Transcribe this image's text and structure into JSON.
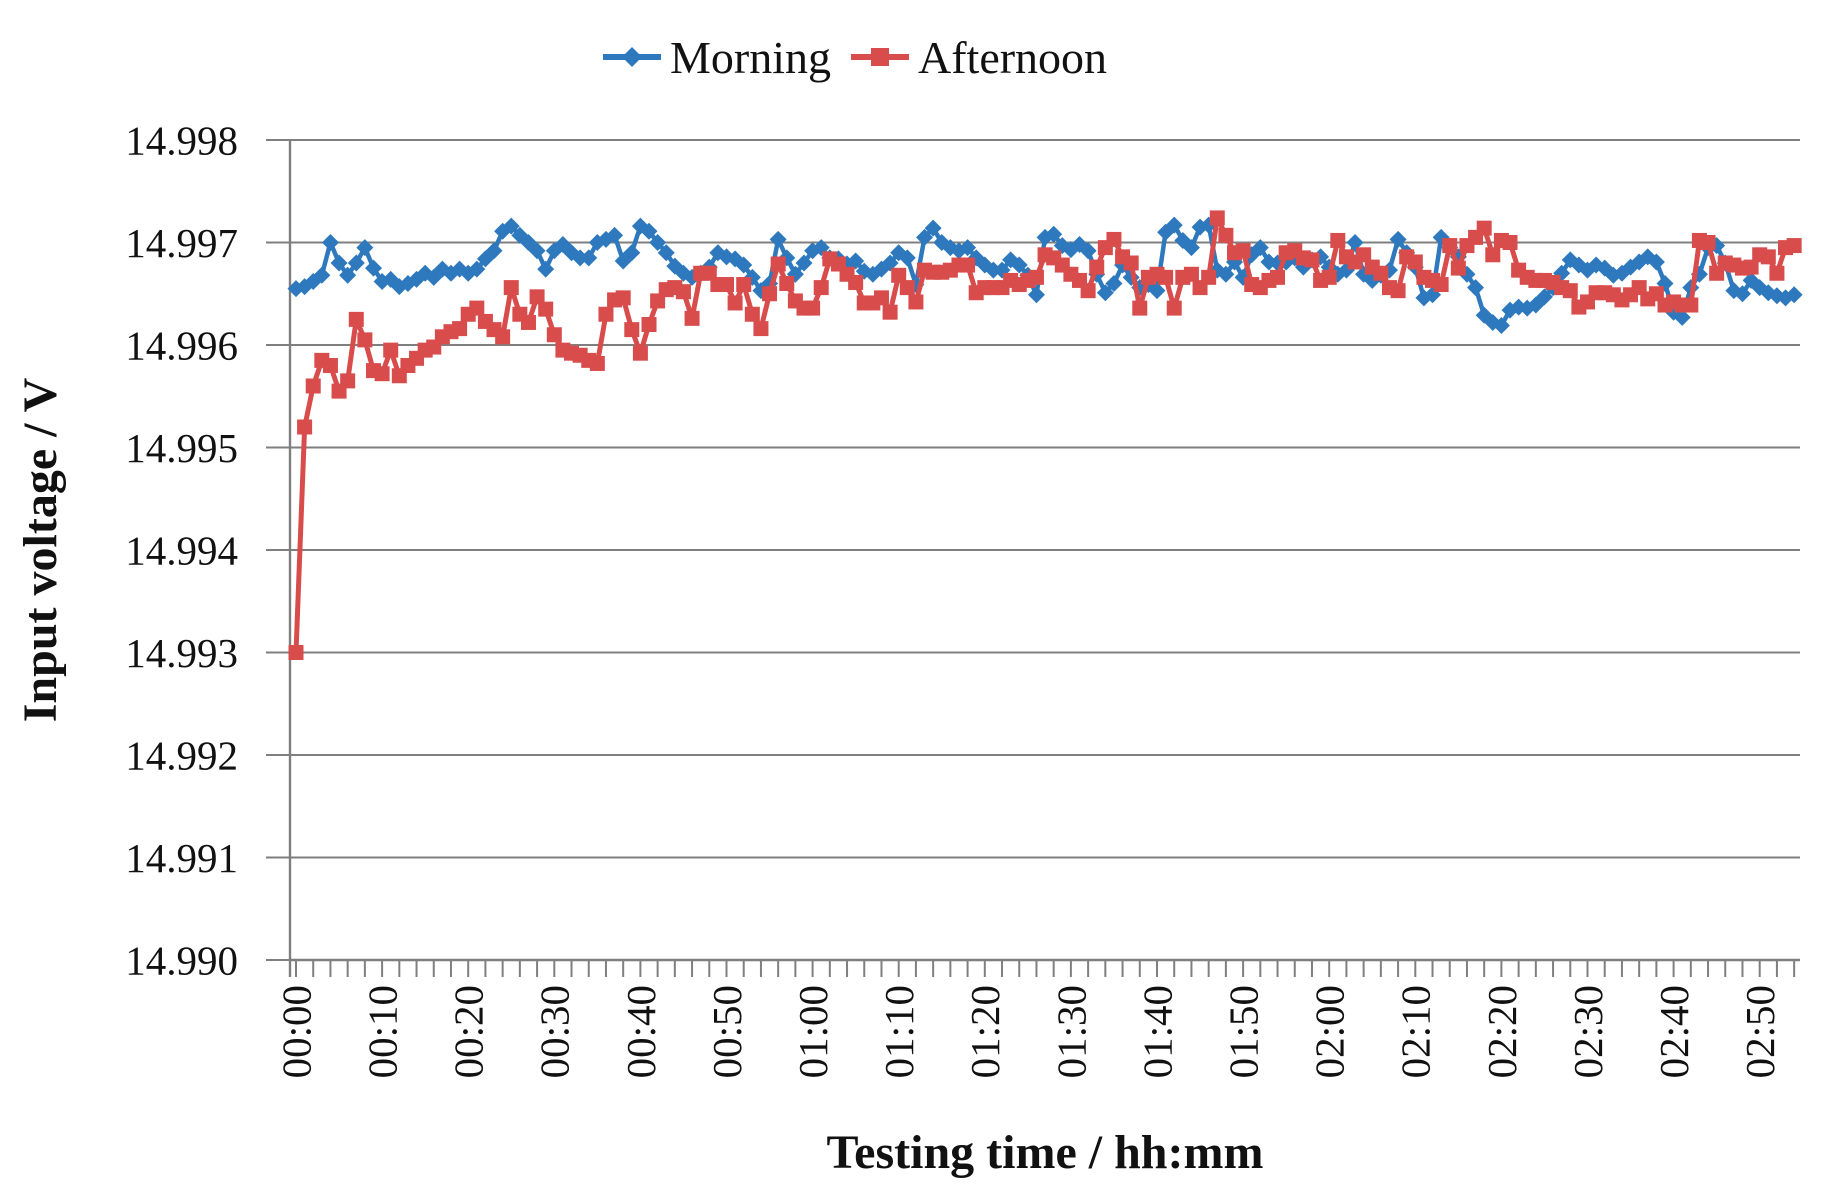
{
  "chart_data": {
    "type": "line",
    "title": "",
    "xlabel": "Testing time / hh:mm",
    "ylabel": "Input voltage / V",
    "legend_position": "top-center",
    "grid": "horizontal",
    "ylim": [
      14.99,
      14.998
    ],
    "y_ticks": [
      14.99,
      14.991,
      14.992,
      14.993,
      14.994,
      14.995,
      14.996,
      14.997,
      14.998
    ],
    "y_tick_labels": [
      "14.990",
      "14.991",
      "14.992",
      "14.993",
      "14.994",
      "14.995",
      "14.996",
      "14.997",
      "14.998"
    ],
    "x_unit": "minutes",
    "x_sample_interval_minutes": 1,
    "x_minor_tick_minutes": 2,
    "x_major_tick_minutes": 10,
    "x_tick_labels": [
      "00:00",
      "00:10",
      "00:20",
      "00:30",
      "00:40",
      "00:50",
      "01:00",
      "01:10",
      "01:20",
      "01:30",
      "01:40",
      "01:50",
      "02:00",
      "02:10",
      "02:20",
      "02:30",
      "02:40",
      "02:50"
    ],
    "colors": {
      "morning": "#2E79BD",
      "afternoon": "#D94C4C",
      "grid": "#7F7F7F",
      "text": "#111111"
    },
    "series": [
      {
        "name": "Morning",
        "color": "#2E79BD",
        "marker": "diamond",
        "values": [
          14.99655,
          14.99657,
          14.99662,
          14.99668,
          14.997,
          14.9968,
          14.99668,
          14.9968,
          14.99695,
          14.99675,
          14.99662,
          14.99664,
          14.99657,
          14.9966,
          14.99664,
          14.9967,
          14.99666,
          14.99674,
          14.9967,
          14.99674,
          14.9967,
          14.99674,
          14.99684,
          14.99692,
          14.99711,
          14.99716,
          14.99707,
          14.997,
          14.99692,
          14.99674,
          14.99692,
          14.99698,
          14.9969,
          14.99685,
          14.99685,
          14.997,
          14.99703,
          14.99707,
          14.99682,
          14.9969,
          14.99716,
          14.99711,
          14.997,
          14.9969,
          14.99677,
          14.9967,
          14.99666,
          14.9967,
          14.99676,
          14.9969,
          14.99686,
          14.99684,
          14.99678,
          14.99666,
          14.99653,
          14.9966,
          14.99703,
          14.99685,
          14.99669,
          14.9968,
          14.99692,
          14.99695,
          14.99685,
          14.99684,
          14.99679,
          14.99682,
          14.99672,
          14.99669,
          14.99674,
          14.9968,
          14.9969,
          14.99685,
          14.99659,
          14.99705,
          14.99714,
          14.997,
          14.99695,
          14.99692,
          14.99695,
          14.99685,
          14.99678,
          14.99673,
          14.99673,
          14.99683,
          14.99678,
          14.99668,
          14.99649,
          14.99705,
          14.99708,
          14.99697,
          14.99693,
          14.99698,
          14.99692,
          14.99669,
          14.99651,
          14.9966,
          14.99678,
          14.99666,
          14.99656,
          14.99659,
          14.99653,
          14.9971,
          14.99717,
          14.99702,
          14.99695,
          14.99715,
          14.99717,
          14.99673,
          14.99669,
          14.99681,
          14.99666,
          14.99688,
          14.99695,
          14.99681,
          14.9968,
          14.99681,
          14.99685,
          14.99676,
          14.99683,
          14.99686,
          14.99676,
          14.99669,
          14.99673,
          14.997,
          14.99669,
          14.99663,
          14.99668,
          14.99673,
          14.99703,
          14.9969,
          14.99676,
          14.99646,
          14.99649,
          14.99705,
          14.99695,
          14.99686,
          14.99669,
          14.99656,
          14.99629,
          14.99622,
          14.99619,
          14.99634,
          14.99637,
          14.99636,
          14.99639,
          14.99647,
          14.99656,
          14.9967,
          14.99683,
          14.99678,
          14.99673,
          14.99678,
          14.99675,
          14.99668,
          14.9967,
          14.99676,
          14.99681,
          14.99686,
          14.99681,
          14.9966,
          14.99632,
          14.99627,
          14.99656,
          14.99669,
          14.99695,
          14.99697,
          14.9968,
          14.99653,
          14.9965,
          14.99663,
          14.99656,
          14.99651,
          14.99648,
          14.99646,
          14.99649
        ]
      },
      {
        "name": "Afternoon",
        "color": "#D94C4C",
        "marker": "square",
        "values": [
          14.993,
          14.9952,
          14.9956,
          14.99585,
          14.9958,
          14.99555,
          14.99565,
          14.99625,
          14.99605,
          14.99575,
          14.99572,
          14.99595,
          14.9957,
          14.9958,
          14.99587,
          14.99595,
          14.99598,
          14.99608,
          14.99613,
          14.99616,
          14.9963,
          14.99636,
          14.99623,
          14.99615,
          14.99608,
          14.99656,
          14.9963,
          14.99622,
          14.99647,
          14.99635,
          14.9961,
          14.99595,
          14.99592,
          14.9959,
          14.99585,
          14.99582,
          14.9963,
          14.99644,
          14.99646,
          14.99615,
          14.99592,
          14.9962,
          14.99643,
          14.99654,
          14.99656,
          14.99652,
          14.99626,
          14.9967,
          14.9967,
          14.99659,
          14.99659,
          14.99641,
          14.99659,
          14.9963,
          14.99616,
          14.9965,
          14.99679,
          14.9966,
          14.99643,
          14.99636,
          14.99636,
          14.99656,
          14.99684,
          14.99679,
          14.99669,
          14.99661,
          14.99641,
          14.99641,
          14.99646,
          14.99632,
          14.99668,
          14.99656,
          14.99642,
          14.99673,
          14.99671,
          14.99671,
          14.99673,
          14.99678,
          14.99678,
          14.99651,
          14.99656,
          14.99656,
          14.99656,
          14.99663,
          14.99659,
          14.99663,
          14.99666,
          14.99688,
          14.99685,
          14.99678,
          14.99669,
          14.99663,
          14.99653,
          14.99676,
          14.99695,
          14.99703,
          14.99686,
          14.9968,
          14.99636,
          14.99666,
          14.99669,
          14.99666,
          14.99636,
          14.99666,
          14.99669,
          14.99656,
          14.99666,
          14.99724,
          14.99707,
          14.9969,
          14.99692,
          14.99659,
          14.99656,
          14.99663,
          14.99666,
          14.9969,
          14.99692,
          14.99685,
          14.99683,
          14.99663,
          14.99666,
          14.99702,
          14.99686,
          14.99681,
          14.99688,
          14.99676,
          14.9967,
          14.99656,
          14.99653,
          14.99686,
          14.99681,
          14.99666,
          14.99663,
          14.99659,
          14.99697,
          14.99675,
          14.99697,
          14.99705,
          14.99714,
          14.99688,
          14.99702,
          14.997,
          14.99673,
          14.99666,
          14.99663,
          14.99663,
          14.99661,
          14.99656,
          14.99653,
          14.99637,
          14.99642,
          14.99651,
          14.99651,
          14.99649,
          14.99644,
          14.99649,
          14.99656,
          14.99645,
          14.9965,
          14.99639,
          14.99642,
          14.99639,
          14.99639,
          14.99702,
          14.997,
          14.9967,
          14.9968,
          14.99678,
          14.99675,
          14.99676,
          14.99688,
          14.99686,
          14.9967,
          14.99695,
          14.99697
        ]
      }
    ]
  }
}
